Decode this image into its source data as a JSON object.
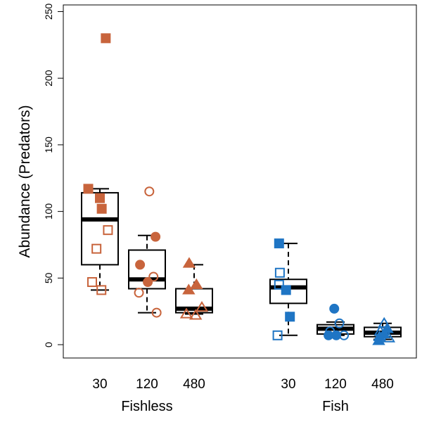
{
  "chart_data": {
    "type": "box",
    "ylabel": "Abundance (Predators)",
    "ylim": [
      -10,
      255
    ],
    "yticks": [
      0,
      50,
      100,
      150,
      200,
      250
    ],
    "groups": [
      {
        "label": "Fishless",
        "color": "#c8643c",
        "categories": [
          "30",
          "120",
          "480"
        ]
      },
      {
        "label": "Fish",
        "color": "#1f75c4",
        "categories": [
          "30",
          "120",
          "480"
        ]
      }
    ],
    "boxes": [
      {
        "group": "Fishless",
        "category": "30",
        "whisker_low": 41,
        "q1": 60,
        "median": 94,
        "q3": 114,
        "whisker_high": 117
      },
      {
        "group": "Fishless",
        "category": "120",
        "whisker_low": 24,
        "q1": 42,
        "median": 49,
        "q3": 71,
        "whisker_high": 82
      },
      {
        "group": "Fishless",
        "category": "480",
        "whisker_low": 23,
        "q1": 24,
        "median": 27,
        "q3": 42,
        "whisker_high": 60
      },
      {
        "group": "Fish",
        "category": "30",
        "whisker_low": 7,
        "q1": 31,
        "median": 43,
        "q3": 49,
        "whisker_high": 76
      },
      {
        "group": "Fish",
        "category": "120",
        "whisker_low": 7,
        "q1": 8,
        "median": 12,
        "q3": 15,
        "whisker_high": 17
      },
      {
        "group": "Fish",
        "category": "480",
        "whisker_low": 4,
        "q1": 6,
        "median": 9,
        "q3": 13,
        "whisker_high": 16
      }
    ],
    "points": [
      {
        "group": "Fishless",
        "category": "30",
        "shape": "square",
        "filled": true,
        "jitter": 0.38,
        "value": 230
      },
      {
        "group": "Fishless",
        "category": "30",
        "shape": "square",
        "filled": true,
        "jitter": -0.75,
        "value": 117
      },
      {
        "group": "Fishless",
        "category": "30",
        "shape": "square",
        "filled": true,
        "jitter": 0.0,
        "value": 110
      },
      {
        "group": "Fishless",
        "category": "30",
        "shape": "square",
        "filled": true,
        "jitter": 0.12,
        "value": 102
      },
      {
        "group": "Fishless",
        "category": "30",
        "shape": "square",
        "filled": false,
        "jitter": 0.52,
        "value": 86
      },
      {
        "group": "Fishless",
        "category": "30",
        "shape": "square",
        "filled": false,
        "jitter": -0.22,
        "value": 72
      },
      {
        "group": "Fishless",
        "category": "30",
        "shape": "square",
        "filled": false,
        "jitter": -0.5,
        "value": 47
      },
      {
        "group": "Fishless",
        "category": "30",
        "shape": "square",
        "filled": false,
        "jitter": 0.1,
        "value": 41
      },
      {
        "group": "Fishless",
        "category": "120",
        "shape": "circle",
        "filled": false,
        "jitter": 0.15,
        "value": 115
      },
      {
        "group": "Fishless",
        "category": "120",
        "shape": "circle",
        "filled": true,
        "jitter": 0.55,
        "value": 81
      },
      {
        "group": "Fishless",
        "category": "120",
        "shape": "circle",
        "filled": true,
        "jitter": -0.45,
        "value": 60
      },
      {
        "group": "Fishless",
        "category": "120",
        "shape": "circle",
        "filled": false,
        "jitter": 0.42,
        "value": 51
      },
      {
        "group": "Fishless",
        "category": "120",
        "shape": "circle",
        "filled": true,
        "jitter": 0.05,
        "value": 47
      },
      {
        "group": "Fishless",
        "category": "120",
        "shape": "circle",
        "filled": false,
        "jitter": -0.52,
        "value": 39
      },
      {
        "group": "Fishless",
        "category": "120",
        "shape": "circle",
        "filled": false,
        "jitter": 0.62,
        "value": 24
      },
      {
        "group": "Fishless",
        "category": "480",
        "shape": "triangle",
        "filled": true,
        "jitter": -0.32,
        "value": 61
      },
      {
        "group": "Fishless",
        "category": "480",
        "shape": "triangle",
        "filled": true,
        "jitter": 0.15,
        "value": 45
      },
      {
        "group": "Fishless",
        "category": "480",
        "shape": "triangle",
        "filled": true,
        "jitter": -0.35,
        "value": 41
      },
      {
        "group": "Fishless",
        "category": "480",
        "shape": "triangle",
        "filled": false,
        "jitter": 0.5,
        "value": 28
      },
      {
        "group": "Fishless",
        "category": "480",
        "shape": "triangle",
        "filled": false,
        "jitter": -0.5,
        "value": 23
      },
      {
        "group": "Fishless",
        "category": "480",
        "shape": "triangle",
        "filled": false,
        "jitter": 0.1,
        "value": 22
      },
      {
        "group": "Fish",
        "category": "30",
        "shape": "square",
        "filled": true,
        "jitter": -0.6,
        "value": 76
      },
      {
        "group": "Fish",
        "category": "30",
        "shape": "square",
        "filled": false,
        "jitter": -0.55,
        "value": 54
      },
      {
        "group": "Fish",
        "category": "30",
        "shape": "square",
        "filled": false,
        "jitter": -0.6,
        "value": 45
      },
      {
        "group": "Fish",
        "category": "30",
        "shape": "square",
        "filled": true,
        "jitter": -0.15,
        "value": 41
      },
      {
        "group": "Fish",
        "category": "30",
        "shape": "square",
        "filled": true,
        "jitter": 0.1,
        "value": 21
      },
      {
        "group": "Fish",
        "category": "30",
        "shape": "square",
        "filled": false,
        "jitter": -0.7,
        "value": 7
      },
      {
        "group": "Fish",
        "category": "120",
        "shape": "circle",
        "filled": true,
        "jitter": -0.08,
        "value": 27
      },
      {
        "group": "Fish",
        "category": "120",
        "shape": "circle",
        "filled": false,
        "jitter": 0.25,
        "value": 16
      },
      {
        "group": "Fish",
        "category": "120",
        "shape": "circle",
        "filled": false,
        "jitter": -0.35,
        "value": 10
      },
      {
        "group": "Fish",
        "category": "120",
        "shape": "circle",
        "filled": true,
        "jitter": -0.45,
        "value": 7
      },
      {
        "group": "Fish",
        "category": "120",
        "shape": "circle",
        "filled": true,
        "jitter": 0.05,
        "value": 7
      },
      {
        "group": "Fish",
        "category": "120",
        "shape": "circle",
        "filled": false,
        "jitter": 0.55,
        "value": 7
      },
      {
        "group": "Fish",
        "category": "480",
        "shape": "triangle",
        "filled": false,
        "jitter": 0.1,
        "value": 16
      },
      {
        "group": "Fish",
        "category": "480",
        "shape": "triangle",
        "filled": true,
        "jitter": 0.3,
        "value": 12
      },
      {
        "group": "Fish",
        "category": "480",
        "shape": "triangle",
        "filled": false,
        "jitter": -0.15,
        "value": 10
      },
      {
        "group": "Fish",
        "category": "480",
        "shape": "triangle",
        "filled": true,
        "jitter": 0.1,
        "value": 8
      },
      {
        "group": "Fish",
        "category": "480",
        "shape": "triangle",
        "filled": true,
        "jitter": -0.2,
        "value": 6
      },
      {
        "group": "Fish",
        "category": "480",
        "shape": "triangle",
        "filled": false,
        "jitter": 0.4,
        "value": 5
      },
      {
        "group": "Fish",
        "category": "480",
        "shape": "triangle",
        "filled": true,
        "jitter": -0.25,
        "value": 3
      }
    ]
  }
}
